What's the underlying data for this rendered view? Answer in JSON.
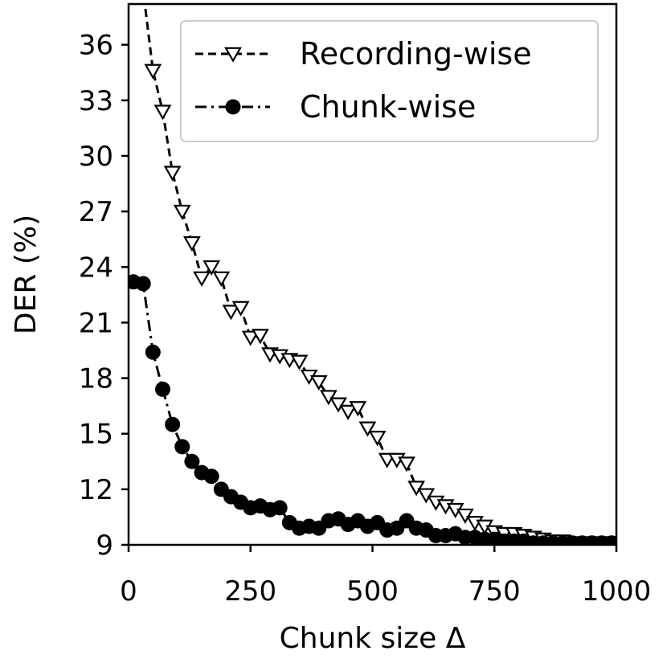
{
  "chart_data": {
    "type": "line",
    "xlabel": "Chunk size Δ",
    "ylabel": "DER (%)",
    "xlim": [
      0,
      1000
    ],
    "ylim": [
      9,
      38.2
    ],
    "xticks": [
      0,
      250,
      500,
      750,
      1000
    ],
    "yticks": [
      9,
      12,
      15,
      18,
      21,
      24,
      27,
      30,
      33,
      36
    ],
    "grid": false,
    "legend_position": "top-right",
    "series": [
      {
        "name": "Recording-wise",
        "marker": "triangle-down-open",
        "linestyle": "dashed",
        "color": "#000000",
        "x": [
          50,
          70,
          90,
          110,
          130,
          150,
          170,
          190,
          210,
          230,
          250,
          270,
          290,
          310,
          330,
          350,
          370,
          390,
          410,
          430,
          450,
          470,
          490,
          510,
          530,
          550,
          570,
          590,
          610,
          630,
          650,
          670,
          690,
          710,
          730,
          750,
          770,
          790,
          810,
          830,
          850,
          870,
          890,
          910,
          930,
          950,
          970,
          990
        ],
        "y": [
          34.6,
          32.4,
          29.1,
          27.0,
          25.3,
          23.4,
          24.0,
          23.4,
          21.6,
          21.8,
          20.2,
          20.3,
          19.3,
          19.2,
          19.0,
          18.9,
          18.1,
          17.8,
          17.0,
          16.6,
          16.2,
          16.4,
          15.3,
          14.8,
          13.6,
          13.6,
          13.4,
          12.1,
          11.7,
          11.3,
          11.1,
          10.9,
          10.6,
          10.2,
          10.0,
          9.7,
          9.6,
          9.6,
          9.5,
          9.4,
          9.3,
          9.2,
          9.2,
          9.1,
          9.1,
          9.1,
          9.1,
          9.1
        ]
      },
      {
        "name": "Chunk-wise",
        "marker": "circle-filled",
        "linestyle": "dashdot",
        "color": "#000000",
        "x": [
          10,
          30,
          50,
          70,
          90,
          110,
          130,
          150,
          170,
          190,
          210,
          230,
          250,
          270,
          290,
          310,
          330,
          350,
          370,
          390,
          410,
          430,
          450,
          470,
          490,
          510,
          530,
          550,
          570,
          590,
          610,
          630,
          650,
          670,
          690,
          710,
          730,
          750,
          770,
          790,
          810,
          830,
          850,
          870,
          890,
          910,
          930,
          950,
          970,
          990
        ],
        "y": [
          23.2,
          23.1,
          19.4,
          17.4,
          15.5,
          14.3,
          13.5,
          12.9,
          12.7,
          12.0,
          11.6,
          11.3,
          11.0,
          11.1,
          10.9,
          11.0,
          10.2,
          9.9,
          10.0,
          9.9,
          10.3,
          10.4,
          10.1,
          10.3,
          10.0,
          10.2,
          9.8,
          9.9,
          10.3,
          9.9,
          9.8,
          9.5,
          9.5,
          9.6,
          9.4,
          9.4,
          9.3,
          9.3,
          9.2,
          9.2,
          9.2,
          9.1,
          9.1,
          9.1,
          9.1,
          9.1,
          9.1,
          9.1,
          9.1,
          9.1
        ]
      }
    ]
  }
}
